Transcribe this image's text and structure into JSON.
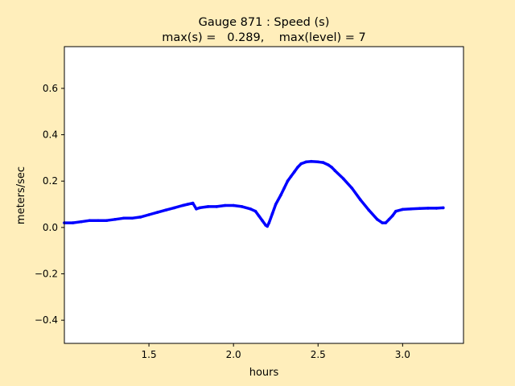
{
  "chart_data": {
    "type": "line",
    "title_line1": "Gauge 871 : Speed (s)",
    "title_line2": "max(s) =   0.289,    max(level) = 7",
    "xlabel": "hours",
    "ylabel": "meters/sec",
    "xlim": [
      1.0,
      3.36
    ],
    "ylim": [
      -0.5,
      0.78
    ],
    "xticks": [
      {
        "value": 1.5,
        "label": "1.5"
      },
      {
        "value": 2.0,
        "label": "2.0"
      },
      {
        "value": 2.5,
        "label": "2.5"
      },
      {
        "value": 3.0,
        "label": "3.0"
      }
    ],
    "yticks": [
      {
        "value": -0.4,
        "label": "−0.4"
      },
      {
        "value": -0.2,
        "label": "−0.2"
      },
      {
        "value": 0.0,
        "label": "0.0"
      },
      {
        "value": 0.2,
        "label": "0.2"
      },
      {
        "value": 0.4,
        "label": "0.4"
      },
      {
        "value": 0.6,
        "label": "0.6"
      }
    ],
    "grid": false,
    "series": [
      {
        "color": "#0000ff",
        "x": [
          1.0,
          1.05,
          1.1,
          1.15,
          1.2,
          1.25,
          1.3,
          1.35,
          1.4,
          1.45,
          1.5,
          1.55,
          1.6,
          1.65,
          1.7,
          1.73,
          1.76,
          1.78,
          1.8,
          1.85,
          1.9,
          1.95,
          2.0,
          2.05,
          2.1,
          2.13,
          2.15,
          2.17,
          2.19,
          2.2,
          2.21,
          2.23,
          2.25,
          2.28,
          2.3,
          2.32,
          2.34,
          2.36,
          2.38,
          2.4,
          2.43,
          2.46,
          2.5,
          2.53,
          2.56,
          2.58,
          2.6,
          2.65,
          2.7,
          2.75,
          2.8,
          2.85,
          2.88,
          2.9,
          2.92,
          2.94,
          2.96,
          3.0,
          3.05,
          3.1,
          3.15,
          3.2,
          3.24
        ],
        "y": [
          0.02,
          0.02,
          0.025,
          0.03,
          0.03,
          0.03,
          0.035,
          0.04,
          0.04,
          0.045,
          0.055,
          0.065,
          0.075,
          0.085,
          0.095,
          0.1,
          0.105,
          0.08,
          0.085,
          0.09,
          0.09,
          0.095,
          0.095,
          0.09,
          0.08,
          0.07,
          0.05,
          0.03,
          0.01,
          0.005,
          0.02,
          0.06,
          0.1,
          0.14,
          0.17,
          0.2,
          0.22,
          0.24,
          0.26,
          0.275,
          0.283,
          0.285,
          0.283,
          0.28,
          0.27,
          0.26,
          0.245,
          0.21,
          0.17,
          0.12,
          0.075,
          0.035,
          0.02,
          0.02,
          0.035,
          0.05,
          0.07,
          0.078,
          0.08,
          0.082,
          0.083,
          0.083,
          0.085
        ]
      }
    ]
  }
}
